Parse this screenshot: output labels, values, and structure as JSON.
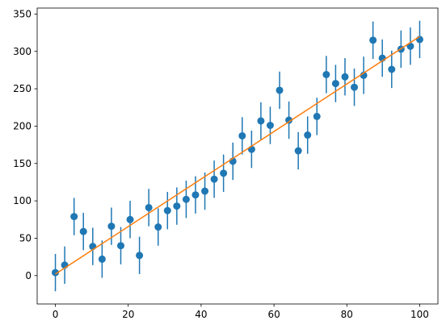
{
  "chart_data": {
    "type": "scatter",
    "title": "",
    "xlabel": "",
    "ylabel": "",
    "xlim": [
      -5.0,
      105.0
    ],
    "ylim": [
      -38,
      358
    ],
    "xticks": [
      0,
      20,
      40,
      60,
      80,
      100
    ],
    "yticks": [
      0,
      50,
      100,
      150,
      200,
      250,
      300,
      350
    ],
    "grid": false,
    "series": [
      {
        "kind": "errorbar",
        "color": "#1f77b4",
        "x": [
          0.0,
          2.56,
          5.13,
          7.69,
          10.26,
          12.82,
          15.38,
          17.95,
          20.51,
          23.08,
          25.64,
          28.21,
          30.77,
          33.33,
          35.9,
          38.46,
          41.03,
          43.59,
          46.15,
          48.72,
          51.28,
          53.85,
          56.41,
          58.97,
          61.54,
          64.1,
          66.67,
          69.23,
          71.79,
          74.36,
          76.92,
          79.49,
          82.05,
          84.62,
          87.18,
          89.74,
          92.31,
          94.87,
          97.44,
          100.0
        ],
        "y": [
          4,
          14,
          79,
          59,
          39,
          22,
          66,
          40,
          75,
          27,
          91,
          65,
          87,
          93,
          102,
          108,
          113,
          129,
          137,
          153,
          187,
          169,
          207,
          201,
          248,
          208,
          167,
          188,
          213,
          269,
          257,
          266,
          252,
          268,
          315,
          291,
          276,
          303,
          307,
          316
        ],
        "yerr": 25
      },
      {
        "kind": "line",
        "color": "#ff7f0e",
        "x": [
          0,
          100
        ],
        "y": [
          2,
          320
        ]
      }
    ]
  }
}
